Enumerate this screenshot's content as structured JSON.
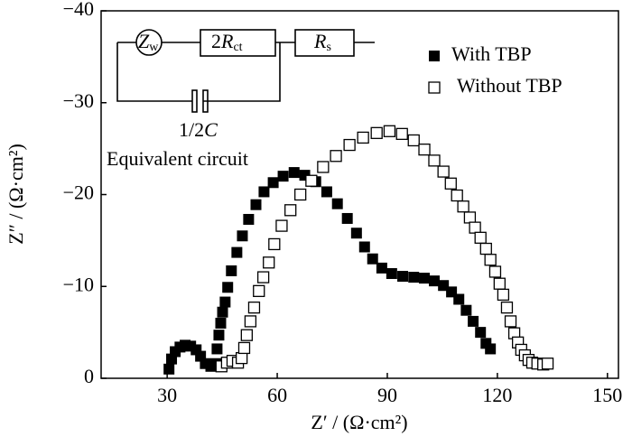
{
  "chart_data": {
    "type": "scatter",
    "xlabel": "Z′ / (Ω·cm²)",
    "ylabel": "Z″ / (Ω·cm²)",
    "xlim": [
      12,
      153
    ],
    "ylim": [
      0,
      -40
    ],
    "xticks": [
      30,
      60,
      90,
      120,
      150
    ],
    "yticks": [
      {
        "value": -40,
        "label": "−40"
      },
      {
        "value": -30,
        "label": "−30"
      },
      {
        "value": -20,
        "label": "−20"
      },
      {
        "value": -10,
        "label": "−10"
      },
      0
    ],
    "legend": "upper right",
    "series": [
      {
        "name": "With TBP",
        "color": "#000000",
        "marker": "square-filled",
        "x": [
          30.5,
          31.2,
          32.2,
          33.5,
          34.9,
          36.4,
          37.9,
          39.1,
          40.4,
          41.9,
          43.3,
          43.6,
          44.1,
          44.6,
          45.1,
          45.8,
          46.5,
          47.5,
          49.0,
          50.5,
          52.2,
          54.2,
          56.4,
          58.9,
          61.6,
          64.6,
          67.5,
          70.5,
          73.5,
          76.4,
          79.1,
          81.6,
          83.8,
          86.0,
          88.5,
          91.2,
          94.2,
          97.2,
          100.1,
          102.8,
          105.3,
          107.5,
          109.5,
          111.5,
          113.4,
          115.4,
          116.9,
          118.1
        ],
        "values": [
          -1.0,
          -2.1,
          -2.9,
          -3.4,
          -3.6,
          -3.5,
          -3.1,
          -2.4,
          -1.6,
          -1.3,
          -1.6,
          -3.2,
          -4.7,
          -6.0,
          -7.2,
          -8.3,
          -9.9,
          -11.7,
          -13.7,
          -15.5,
          -17.3,
          -18.9,
          -20.3,
          -21.3,
          -22.0,
          -22.4,
          -22.1,
          -21.4,
          -20.3,
          -19.0,
          -17.4,
          -15.8,
          -14.3,
          -13.0,
          -12.0,
          -11.4,
          -11.1,
          -11.0,
          -10.9,
          -10.6,
          -10.1,
          -9.4,
          -8.6,
          -7.4,
          -6.2,
          -5.0,
          -3.8,
          -3.2
        ]
      },
      {
        "name": "Without TBP",
        "color": "#000000",
        "marker": "square-open",
        "x": [
          44.8,
          46.3,
          47.8,
          49.3,
          50.3,
          51.0,
          51.7,
          52.7,
          53.7,
          55.0,
          56.2,
          57.7,
          59.2,
          61.2,
          63.6,
          66.3,
          69.3,
          72.5,
          76.0,
          79.7,
          83.4,
          87.1,
          90.6,
          94.0,
          97.2,
          100.1,
          102.8,
          105.3,
          107.3,
          109.0,
          110.7,
          112.5,
          113.9,
          115.4,
          116.9,
          118.1,
          119.4,
          120.6,
          121.6,
          122.6,
          123.6,
          124.6,
          125.6,
          126.5,
          127.5,
          128.5,
          129.5,
          130.9,
          132.5,
          133.7
        ],
        "values": [
          -1.3,
          -1.7,
          -1.9,
          -1.7,
          -2.2,
          -3.3,
          -4.7,
          -6.2,
          -7.7,
          -9.5,
          -11.0,
          -12.6,
          -14.6,
          -16.6,
          -18.3,
          -20.0,
          -21.5,
          -23.0,
          -24.2,
          -25.4,
          -26.2,
          -26.7,
          -26.9,
          -26.6,
          -25.9,
          -24.9,
          -23.7,
          -22.5,
          -21.2,
          -19.9,
          -18.7,
          -17.5,
          -16.4,
          -15.3,
          -14.1,
          -12.9,
          -11.6,
          -10.3,
          -9.1,
          -7.7,
          -6.2,
          -4.9,
          -3.9,
          -3.1,
          -2.5,
          -2.0,
          -1.7,
          -1.6,
          -1.5,
          -1.6
        ]
      }
    ],
    "inset": {
      "zw": [
        "Z",
        "w"
      ],
      "rct": [
        "2",
        "R",
        "ct"
      ],
      "rs": [
        "R",
        "s"
      ],
      "cap": [
        "1/2",
        "C"
      ],
      "caption": "Equivalent circuit"
    }
  }
}
